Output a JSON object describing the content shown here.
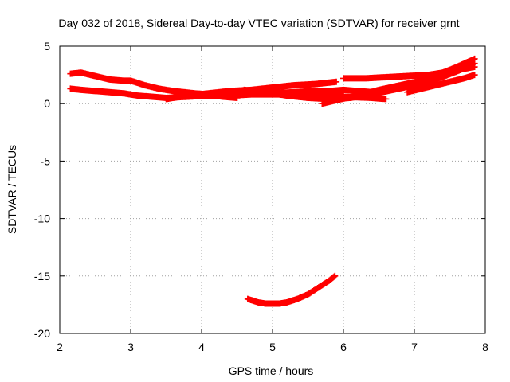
{
  "chart_data": {
    "type": "scatter",
    "title": "Day 032 of 2018, Sidereal Day-to-day VTEC variation (SDTVAR) for receiver grnt",
    "xlabel": "GPS time / hours",
    "ylabel": "SDTVAR / TECUs",
    "xlim": [
      2,
      8
    ],
    "ylim": [
      -20,
      5
    ],
    "xticks": [
      "2",
      "3",
      "4",
      "5",
      "6",
      "7",
      "8"
    ],
    "yticks": [
      "5",
      "0",
      "-5",
      "-10",
      "-15",
      "-20"
    ],
    "grid": true,
    "marker": "plus",
    "colors": {
      "series": "#ff0000",
      "grid": "#a0a0a0",
      "axis": "#000000"
    },
    "series": [
      {
        "x": [
          2.15,
          2.3,
          2.5,
          2.7,
          2.9,
          3.1,
          3.3,
          3.5,
          3.8,
          4.1,
          4.4,
          4.7,
          5.0,
          5.3,
          5.6,
          5.85,
          6.0,
          6.2,
          6.4,
          6.6
        ],
        "y": [
          1.3,
          1.2,
          1.1,
          1.0,
          0.9,
          0.7,
          0.6,
          0.5,
          0.6,
          0.7,
          0.7,
          0.8,
          0.8,
          0.8,
          0.7,
          0.6,
          0.6,
          0.55,
          0.5,
          0.4
        ]
      },
      {
        "x": [
          2.15,
          2.3,
          2.5,
          2.7,
          2.9,
          3.0,
          3.2,
          3.4,
          3.6,
          3.9,
          4.1,
          4.3,
          4.5
        ],
        "y": [
          2.6,
          2.7,
          2.4,
          2.1,
          2.0,
          2.0,
          1.6,
          1.3,
          1.1,
          0.9,
          0.8,
          0.6,
          0.5
        ]
      },
      {
        "x": [
          3.5,
          3.8,
          4.1,
          4.4,
          4.7,
          5.0,
          5.3,
          5.6,
          5.9
        ],
        "y": [
          0.4,
          0.7,
          0.9,
          1.1,
          1.2,
          1.4,
          1.6,
          1.7,
          1.9
        ]
      },
      {
        "x": [
          4.6,
          4.9,
          5.2,
          5.5,
          5.8,
          6.1,
          6.4,
          6.7,
          7.0,
          7.3,
          7.6,
          7.85
        ],
        "y": [
          1.2,
          1.0,
          0.7,
          0.5,
          0.4,
          0.5,
          0.8,
          1.2,
          1.6,
          2.1,
          2.8,
          3.5
        ]
      },
      {
        "x": [
          5.7,
          5.9,
          6.2,
          6.5,
          6.8,
          7.1,
          7.4,
          7.6,
          7.85
        ],
        "y": [
          0.0,
          0.3,
          0.7,
          1.2,
          1.6,
          2.0,
          2.7,
          3.2,
          3.9
        ]
      },
      {
        "x": [
          5.6,
          5.8,
          6.0,
          6.2,
          6.4
        ],
        "y": [
          0.9,
          1.1,
          1.2,
          1.1,
          1.0
        ]
      },
      {
        "x": [
          5.0,
          5.3,
          5.6,
          5.8,
          6.0
        ],
        "y": [
          0.9,
          1.0,
          1.1,
          1.1,
          1.0
        ]
      },
      {
        "x": [
          6.0,
          6.3,
          6.6,
          6.9,
          7.2,
          7.5,
          7.85
        ],
        "y": [
          2.2,
          2.2,
          2.3,
          2.4,
          2.5,
          2.8,
          3.2
        ]
      },
      {
        "x": [
          6.9,
          7.1,
          7.3,
          7.5,
          7.7,
          7.85
        ],
        "y": [
          1.0,
          1.3,
          1.6,
          1.9,
          2.2,
          2.5
        ]
      },
      {
        "x": [
          4.65,
          4.8,
          4.9,
          5.0,
          5.1,
          5.2,
          5.35,
          5.5,
          5.65,
          5.8,
          5.88
        ],
        "y": [
          -17.0,
          -17.3,
          -17.4,
          -17.4,
          -17.4,
          -17.3,
          -17.0,
          -16.6,
          -16.0,
          -15.4,
          -15.0
        ]
      }
    ]
  }
}
